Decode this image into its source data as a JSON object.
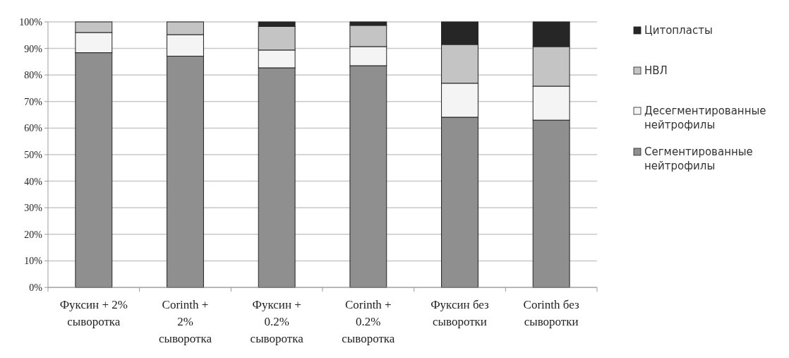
{
  "chart_data": {
    "type": "bar",
    "stacked": true,
    "categories": [
      "Фуксин + 2% сыворотка",
      "Corinth + 2% сыворотка",
      "Фуксин + 0.2% сыворотка",
      "Corinth + 0.2% сыворотка",
      "Фуксин без сыворотки",
      "Corinth без сыворотки"
    ],
    "series": [
      {
        "name": "Сегментированные нейтрофилы",
        "color": "#8f8f8f",
        "values": [
          88.4,
          87.1,
          82.7,
          83.5,
          64.1,
          63.0
        ]
      },
      {
        "name": "Десегментированные нейтрофилы",
        "color": "#f4f4f4",
        "values": [
          7.6,
          8.1,
          6.7,
          7.2,
          12.8,
          12.8
        ]
      },
      {
        "name": "НВЛ",
        "color": "#c4c4c4",
        "values": [
          4.0,
          4.8,
          8.9,
          8.0,
          14.6,
          14.9
        ]
      },
      {
        "name": "Цитопласты",
        "color": "#262626",
        "values": [
          0,
          0,
          1.7,
          1.3,
          8.5,
          9.3
        ]
      }
    ],
    "ylim": [
      0,
      100
    ],
    "yticks": [
      {
        "value": 0,
        "label": "0%"
      },
      {
        "value": 10,
        "label": "10%"
      },
      {
        "value": 20,
        "label": "20%"
      },
      {
        "value": 30,
        "label": "30%"
      },
      {
        "value": 40,
        "label": "40%"
      },
      {
        "value": 50,
        "label": "50%"
      },
      {
        "value": 60,
        "label": "60%"
      },
      {
        "value": 70,
        "label": "70%"
      },
      {
        "value": 80,
        "label": "80%"
      },
      {
        "value": 90,
        "label": "90%"
      },
      {
        "value": 100,
        "label": "100%"
      }
    ],
    "grid": "y",
    "legend": "right"
  }
}
